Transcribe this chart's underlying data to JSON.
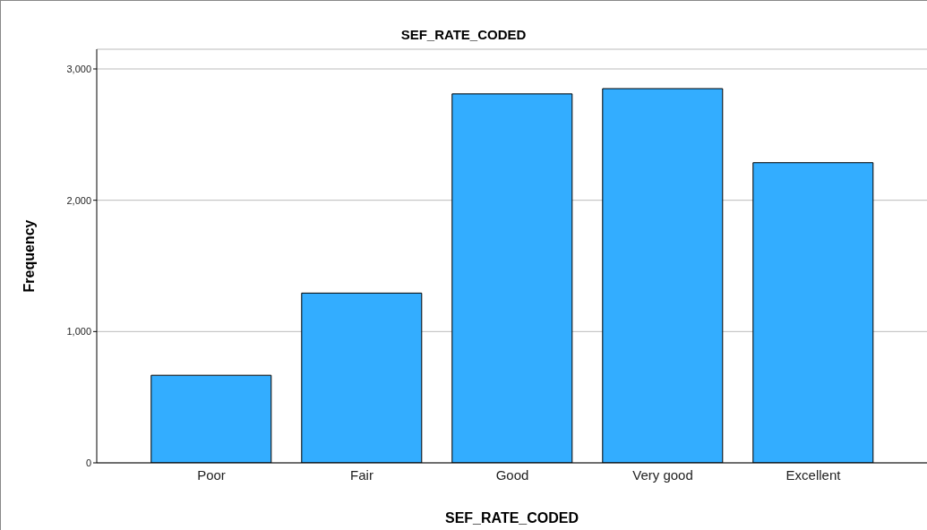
{
  "chart_data": {
    "type": "bar",
    "title": "SEF_RATE_CODED",
    "xlabel": "SEF_RATE_CODED",
    "ylabel": "Frequency",
    "categories": [
      "Poor",
      "Fair",
      "Good",
      "Very good",
      "Excellent"
    ],
    "values": [
      667,
      1293,
      2810,
      2850,
      2286
    ],
    "color": "#33adff",
    "ylim": [
      0,
      3150
    ],
    "yticks": [
      {
        "value": 0,
        "label": "0"
      },
      {
        "value": 1000,
        "label": "1,000"
      },
      {
        "value": 2000,
        "label": "2,000"
      },
      {
        "value": 3000,
        "label": "3,000"
      }
    ],
    "grid": "y"
  }
}
